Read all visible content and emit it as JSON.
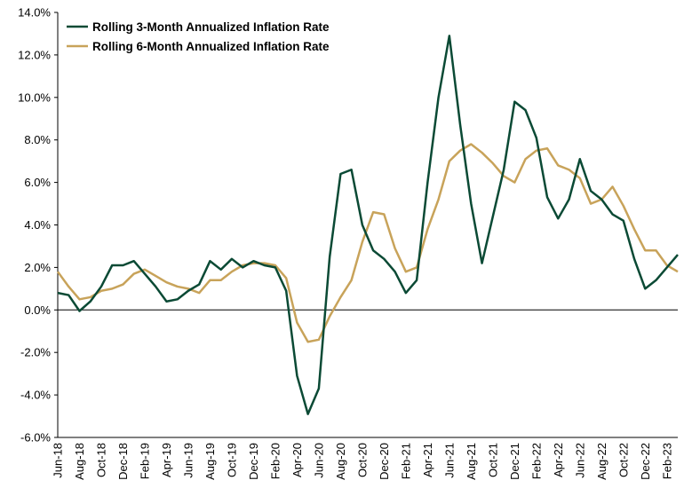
{
  "chart_data": {
    "type": "line",
    "title": "",
    "xlabel": "",
    "ylabel": "",
    "y_format": "percent_1dp",
    "ylim": [
      -6,
      14
    ],
    "yticks": [
      -6,
      -4,
      -2,
      0,
      2,
      4,
      6,
      8,
      10,
      12,
      14
    ],
    "grid": false,
    "legend_position": "top-left",
    "x": [
      "Jun-18",
      "Jul-18",
      "Aug-18",
      "Sep-18",
      "Oct-18",
      "Nov-18",
      "Dec-18",
      "Jan-19",
      "Feb-19",
      "Mar-19",
      "Apr-19",
      "May-19",
      "Jun-19",
      "Jul-19",
      "Aug-19",
      "Sep-19",
      "Oct-19",
      "Nov-19",
      "Dec-19",
      "Jan-20",
      "Feb-20",
      "Mar-20",
      "Apr-20",
      "May-20",
      "Jun-20",
      "Jul-20",
      "Aug-20",
      "Sep-20",
      "Oct-20",
      "Nov-20",
      "Dec-20",
      "Jan-21",
      "Feb-21",
      "Mar-21",
      "Apr-21",
      "May-21",
      "Jun-21",
      "Jul-21",
      "Aug-21",
      "Sep-21",
      "Oct-21",
      "Nov-21",
      "Dec-21",
      "Jan-22",
      "Feb-22",
      "Mar-22",
      "Apr-22",
      "May-22",
      "Jun-22",
      "Jul-22",
      "Aug-22",
      "Sep-22",
      "Oct-22",
      "Nov-22",
      "Dec-22",
      "Jan-23",
      "Feb-23",
      "Mar-23"
    ],
    "xtick_labels": [
      "Jun-18",
      "Aug-18",
      "Oct-18",
      "Dec-18",
      "Feb-19",
      "Apr-19",
      "Jun-19",
      "Aug-19",
      "Oct-19",
      "Dec-19",
      "Feb-20",
      "Apr-20",
      "Jun-20",
      "Aug-20",
      "Oct-20",
      "Dec-20",
      "Feb-21",
      "Apr-21",
      "Jun-21",
      "Aug-21",
      "Oct-21",
      "Dec-21",
      "Feb-22",
      "Apr-22",
      "Jun-22",
      "Aug-22",
      "Oct-22",
      "Dec-22",
      "Feb-23"
    ],
    "series": [
      {
        "name": "Rolling 3-Month Annualized Inflation Rate",
        "color": "#0b4a35",
        "values": [
          0.8,
          0.7,
          -0.05,
          0.4,
          1.1,
          2.1,
          2.1,
          2.3,
          1.7,
          1.1,
          0.4,
          0.5,
          0.9,
          1.2,
          2.3,
          1.9,
          2.4,
          2.0,
          2.3,
          2.1,
          2.0,
          0.9,
          -3.1,
          -4.9,
          -3.7,
          2.5,
          6.4,
          6.6,
          4.0,
          2.8,
          2.4,
          1.8,
          0.8,
          1.4,
          6.0,
          10.0,
          12.9,
          8.7,
          5.0,
          2.2,
          4.4,
          6.6,
          9.8,
          9.4,
          8.1,
          5.3,
          4.3,
          5.2,
          7.1,
          5.6,
          5.2,
          4.5,
          4.2,
          2.4,
          1.0,
          1.4,
          2.0,
          2.6
        ]
      },
      {
        "name": "Rolling 6-Month Annualized Inflation Rate",
        "color": "#c8a35a",
        "values": [
          1.8,
          1.1,
          0.5,
          0.6,
          0.9,
          1.0,
          1.2,
          1.7,
          1.9,
          1.6,
          1.3,
          1.1,
          1.0,
          0.8,
          1.4,
          1.4,
          1.8,
          2.1,
          2.2,
          2.2,
          2.1,
          1.5,
          -0.6,
          -1.5,
          -1.4,
          -0.3,
          0.6,
          1.4,
          3.2,
          4.6,
          4.5,
          2.9,
          1.8,
          2.0,
          3.8,
          5.2,
          7.0,
          7.5,
          7.8,
          7.4,
          6.9,
          6.3,
          6.0,
          7.1,
          7.5,
          7.6,
          6.8,
          6.6,
          6.2,
          5.0,
          5.2,
          5.8,
          4.9,
          3.8,
          2.8,
          2.8,
          2.1,
          1.8
        ]
      }
    ]
  }
}
